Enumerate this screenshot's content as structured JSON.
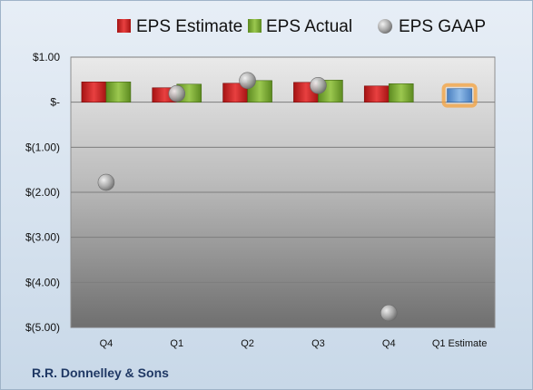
{
  "company": "R.R. Donnelley & Sons",
  "colors": {
    "estimate": "#d42a2a",
    "actual": "#7aa832",
    "gaap": "#a9a9a9",
    "forecast": "#6fa0d8",
    "forecast_glow": "#f6a23c"
  },
  "chart_data": {
    "type": "bar",
    "title": "",
    "xlabel": "",
    "ylabel": "",
    "categories": [
      "Q4",
      "Q1",
      "Q2",
      "Q3",
      "Q4",
      "Q1 Estimate"
    ],
    "series": [
      {
        "name": "EPS Estimate",
        "kind": "bar",
        "values": [
          0.45,
          0.32,
          0.42,
          0.44,
          0.36,
          0.3
        ]
      },
      {
        "name": "EPS Actual",
        "kind": "bar",
        "values": [
          0.45,
          0.4,
          0.48,
          0.49,
          0.41,
          null
        ]
      },
      {
        "name": "EPS GAAP",
        "kind": "marker",
        "values": [
          -1.78,
          0.19,
          0.48,
          0.37,
          -4.68,
          null
        ]
      }
    ],
    "ylim": [
      -5,
      1
    ],
    "yticks": [
      1,
      0,
      -1,
      -2,
      -3,
      -4,
      -5
    ],
    "ytick_labels": [
      "$1.00",
      "$-",
      "$(1.00)",
      "$(2.00)",
      "$(3.00)",
      "$(4.00)",
      "$(5.00)"
    ],
    "grid": true,
    "legend_position": "top"
  }
}
